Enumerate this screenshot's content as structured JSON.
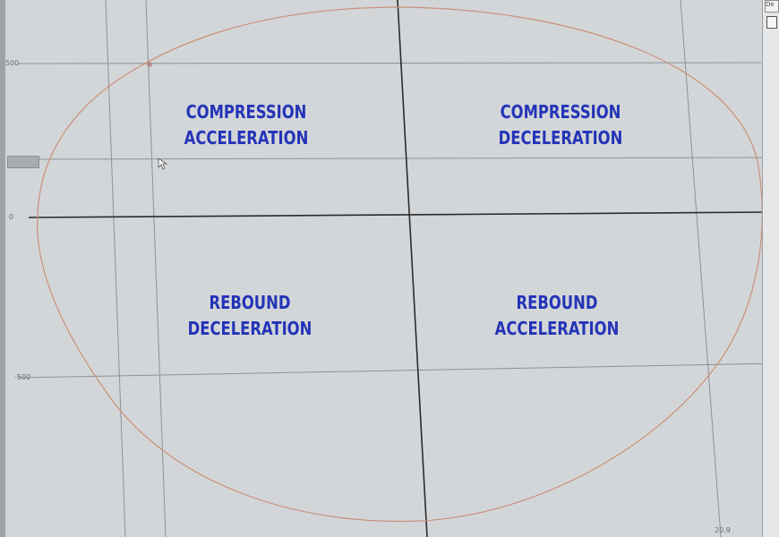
{
  "quadrants": {
    "top_left": {
      "line1": "COMPRESSION",
      "line2": "ACCELERATION"
    },
    "top_right": {
      "line1": "COMPRESSION",
      "line2": "DECELERATION"
    },
    "bottom_left": {
      "line1": "REBOUND",
      "line2": "DECELERATION"
    },
    "bottom_right": {
      "line1": "REBOUND",
      "line2": "ACCELERATION"
    }
  },
  "axis_ticks": {
    "y_top": "500",
    "y_zero": "0",
    "y_bottom": "-500",
    "x_right": "20.9"
  },
  "right_panel": {
    "tab_label": "De"
  },
  "colors": {
    "label_text": "#2434b8",
    "curve": "#c9907a",
    "axis": "#2b2b2b",
    "grid": "#8e9295"
  }
}
